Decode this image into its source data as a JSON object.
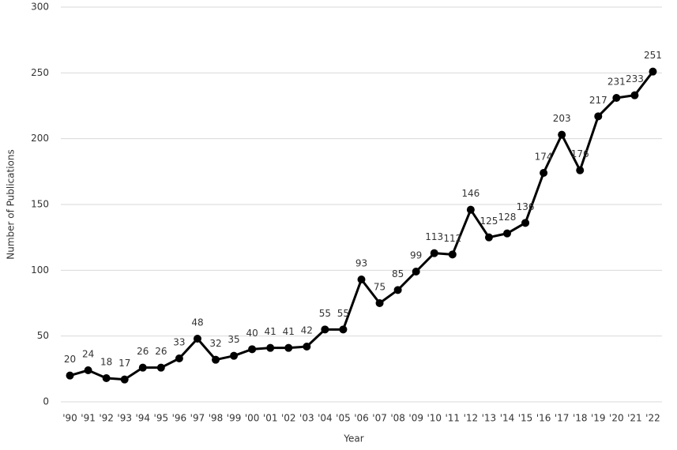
{
  "chart_data": {
    "type": "line",
    "xlabel": "Year",
    "ylabel": "Number of Publications",
    "categories": [
      "'90",
      "'91",
      "'92",
      "'93",
      "'94",
      "'95",
      "'96",
      "'97",
      "'98",
      "'99",
      "'00",
      "'01",
      "'02",
      "'03",
      "'04",
      "'05",
      "'06",
      "'07",
      "'08",
      "'09",
      "'10",
      "'11",
      "'12",
      "'13",
      "'14",
      "'15",
      "'16",
      "'17",
      "'18",
      "'19",
      "'20",
      "'21",
      "'22"
    ],
    "values": [
      20,
      24,
      18,
      17,
      26,
      26,
      33,
      48,
      32,
      35,
      40,
      41,
      41,
      42,
      55,
      55,
      93,
      75,
      85,
      99,
      113,
      112,
      146,
      125,
      128,
      136,
      174,
      203,
      176,
      217,
      231,
      233,
      251
    ],
    "color": "#000000",
    "ylim": [
      0,
      300
    ],
    "yticks": [
      0,
      50,
      100,
      150,
      200,
      250,
      300
    ],
    "grid": true
  }
}
